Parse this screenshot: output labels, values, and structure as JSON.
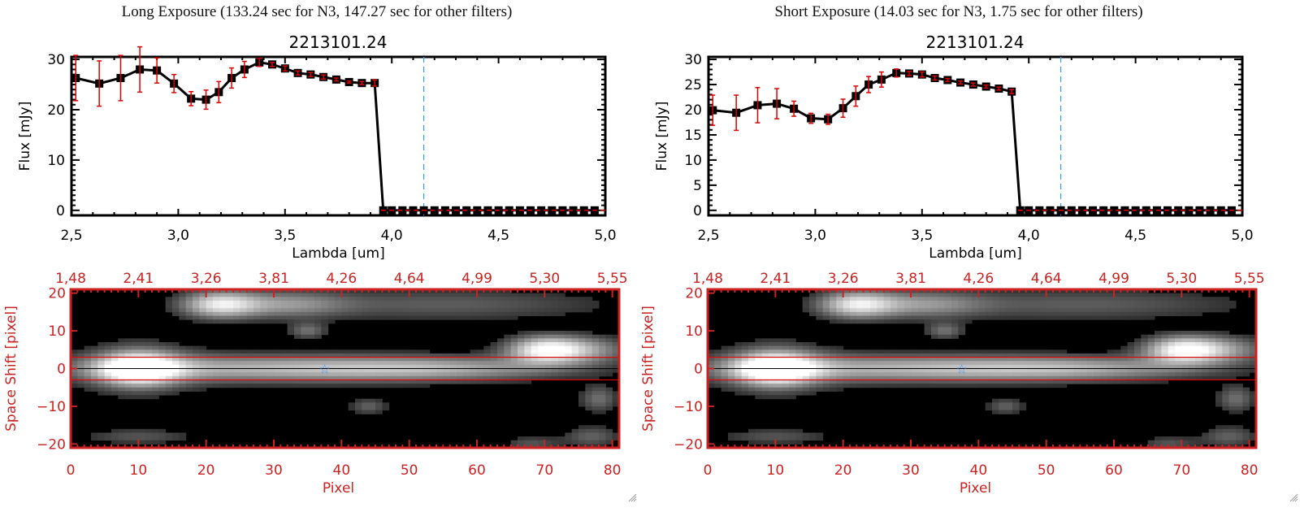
{
  "panels": [
    {
      "title": "Long Exposure (133.24 sec for N3, 147.27 sec for other filters)",
      "object_id": "2213101.24"
    },
    {
      "title": "Short Exposure (14.03 sec for N3, 1.75 sec for other filters)",
      "object_id": "2213101.24"
    }
  ],
  "colors": {
    "spectrum_line": "#000000",
    "error_bar": "#e00000",
    "marker_line": "#3399ff",
    "image_axes": "#cc2222",
    "aperture_line": "#dd0000",
    "star_marker": "#3399ff",
    "zero_line": "#e00000"
  },
  "chart_data": [
    {
      "type": "line",
      "title": "2213101.24",
      "xlabel": "Lambda [um]",
      "ylabel": "Flux [mJy]",
      "xlim": [
        2.5,
        5.0
      ],
      "ylim": [
        -1,
        30.5
      ],
      "xticks": [
        "2.5",
        "3.0",
        "3.5",
        "4.0",
        "4.5",
        "5.0"
      ],
      "yticks": [
        "0",
        "10",
        "20",
        "30"
      ],
      "ytick_values": [
        0,
        10,
        20,
        30
      ],
      "vline": 4.15,
      "grid": false,
      "series": [
        {
          "name": "flux",
          "x": [
            2.52,
            2.63,
            2.73,
            2.82,
            2.9,
            2.98,
            3.06,
            3.13,
            3.19,
            3.25,
            3.31,
            3.38,
            3.44,
            3.5,
            3.56,
            3.62,
            3.68,
            3.74,
            3.8,
            3.86,
            3.92,
            3.96,
            4.0,
            4.05,
            4.1,
            4.15,
            4.2,
            4.25,
            4.3,
            4.35,
            4.4,
            4.45,
            4.5,
            4.55,
            4.6,
            4.65,
            4.7,
            4.75,
            4.8,
            4.85,
            4.9,
            4.95
          ],
          "y": [
            26.3,
            25.2,
            26.3,
            28.0,
            27.8,
            25.2,
            22.2,
            22.0,
            23.5,
            26.3,
            28.0,
            29.4,
            29.0,
            28.2,
            27.3,
            27.0,
            26.5,
            26.0,
            25.5,
            25.3,
            25.3,
            0,
            0,
            0,
            0,
            0,
            0,
            0,
            0,
            0,
            0,
            0,
            0,
            0,
            0,
            0,
            0,
            0,
            0,
            0,
            0,
            0
          ],
          "yerr": [
            4.5,
            4.5,
            4.5,
            4.5,
            2.5,
            1.8,
            1.4,
            1.9,
            2.1,
            2.0,
            1.6,
            0.8,
            0.4,
            0.5,
            0.4,
            0.4,
            0.4,
            0.3,
            0.2,
            0.3,
            0.6,
            0,
            0,
            0,
            0,
            0,
            0,
            0,
            0,
            0,
            0,
            0,
            0,
            0,
            0,
            0,
            0,
            0,
            0,
            0,
            0,
            0
          ]
        }
      ]
    },
    {
      "type": "line",
      "title": "2213101.24",
      "xlabel": "Lambda [um]",
      "ylabel": "Flux [mJy]",
      "xlim": [
        2.5,
        5.0
      ],
      "ylim": [
        -1,
        30.5
      ],
      "xticks": [
        "2.5",
        "3.0",
        "3.5",
        "4.0",
        "4.5",
        "5.0"
      ],
      "yticks": [
        "0",
        "5",
        "10",
        "15",
        "20",
        "25",
        "30"
      ],
      "ytick_values": [
        0,
        5,
        10,
        15,
        20,
        25,
        30
      ],
      "vline": 4.15,
      "grid": false,
      "series": [
        {
          "name": "flux",
          "x": [
            2.52,
            2.63,
            2.73,
            2.82,
            2.9,
            2.98,
            3.06,
            3.13,
            3.19,
            3.25,
            3.31,
            3.38,
            3.44,
            3.5,
            3.56,
            3.62,
            3.68,
            3.74,
            3.8,
            3.86,
            3.92,
            3.96,
            4.0,
            4.05,
            4.1,
            4.15,
            4.2,
            4.25,
            4.3,
            4.35,
            4.4,
            4.45,
            4.5,
            4.55,
            4.6,
            4.65,
            4.7,
            4.75,
            4.8,
            4.85,
            4.9,
            4.95
          ],
          "y": [
            19.9,
            19.4,
            20.9,
            21.2,
            20.2,
            18.3,
            18.1,
            20.3,
            22.7,
            25.0,
            26.0,
            27.3,
            27.2,
            27.0,
            26.3,
            25.9,
            25.4,
            25.0,
            24.6,
            24.2,
            23.6,
            0,
            0,
            0,
            0,
            0,
            0,
            0,
            0,
            0,
            0,
            0,
            0,
            0,
            0,
            0,
            0,
            0,
            0,
            0,
            0,
            0
          ],
          "yerr": [
            3.0,
            3.5,
            3.5,
            3.0,
            1.5,
            1.0,
            1.0,
            1.8,
            2.0,
            1.6,
            1.5,
            0.8,
            0.4,
            0.5,
            0.4,
            0.3,
            0.3,
            0.3,
            0.3,
            0.3,
            0.4,
            0,
            0,
            0,
            0,
            0,
            0,
            0,
            0,
            0,
            0,
            0,
            0,
            0,
            0,
            0,
            0,
            0,
            0,
            0,
            0,
            0
          ]
        }
      ]
    },
    {
      "type": "heatmap",
      "xlabel": "Pixel",
      "ylabel": "Space Shift [pixel]",
      "xlim": [
        0,
        81
      ],
      "ylim": [
        -21,
        21
      ],
      "xticks": [
        "0",
        "10",
        "20",
        "30",
        "40",
        "50",
        "60",
        "70",
        "80"
      ],
      "xtick_values": [
        0,
        10,
        20,
        30,
        40,
        50,
        60,
        70,
        80
      ],
      "top_xticks": [
        "1.48",
        "2.41",
        "3.26",
        "3.81",
        "4.26",
        "4.64",
        "4.99",
        "5.30",
        "5.55"
      ],
      "yticks": [
        "20",
        "10",
        "0",
        "-10",
        "-20"
      ],
      "ytick_values": [
        20,
        10,
        0,
        -10,
        -20
      ],
      "aperture": [
        -3,
        3
      ],
      "star": {
        "x": 37.5,
        "y": 0
      },
      "blobs": [
        {
          "x": 10,
          "y": 0,
          "sx": 4,
          "sy": 3,
          "amp": 1.0
        },
        {
          "x": 30,
          "y": 0,
          "sx": 22,
          "sy": 2.6,
          "amp": 0.6
        },
        {
          "x": 55,
          "y": 0,
          "sx": 14,
          "sy": 2.2,
          "amp": 0.35
        },
        {
          "x": 22,
          "y": 17,
          "sx": 4,
          "sy": 2.5,
          "amp": 0.8
        },
        {
          "x": 32,
          "y": 17,
          "sx": 6,
          "sy": 2.5,
          "amp": 0.4
        },
        {
          "x": 70,
          "y": 5,
          "sx": 4,
          "sy": 2.5,
          "amp": 0.85
        },
        {
          "x": 76,
          "y": 5,
          "sx": 5,
          "sy": 2.5,
          "amp": 0.45
        },
        {
          "x": 55,
          "y": 17,
          "sx": 18,
          "sy": 3,
          "amp": 0.28
        },
        {
          "x": 35,
          "y": 10,
          "sx": 2,
          "sy": 1.5,
          "amp": 0.35
        },
        {
          "x": 44,
          "y": -10,
          "sx": 2,
          "sy": 1.5,
          "amp": 0.3
        },
        {
          "x": 10,
          "y": -18,
          "sx": 6,
          "sy": 1.5,
          "amp": 0.25
        },
        {
          "x": 78,
          "y": -8,
          "sx": 2,
          "sy": 2.5,
          "amp": 0.35
        },
        {
          "x": 77,
          "y": -18,
          "sx": 3,
          "sy": 2,
          "amp": 0.3
        },
        {
          "x": 68,
          "y": -20,
          "sx": 3,
          "sy": 1.5,
          "amp": 0.25
        },
        {
          "x": 10,
          "y": 0,
          "sx": 7,
          "sy": 6,
          "amp": 0.2
        }
      ]
    }
  ]
}
